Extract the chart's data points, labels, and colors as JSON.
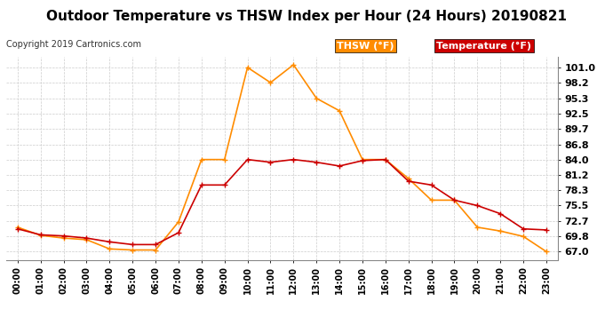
{
  "title": "Outdoor Temperature vs THSW Index per Hour (24 Hours) 20190821",
  "copyright": "Copyright 2019 Cartronics.com",
  "hours": [
    "00:00",
    "01:00",
    "02:00",
    "03:00",
    "04:00",
    "05:00",
    "06:00",
    "07:00",
    "08:00",
    "09:00",
    "10:00",
    "11:00",
    "12:00",
    "13:00",
    "14:00",
    "15:00",
    "16:00",
    "17:00",
    "18:00",
    "19:00",
    "20:00",
    "21:00",
    "22:00",
    "23:00"
  ],
  "temperature": [
    71.2,
    70.1,
    69.9,
    69.5,
    68.8,
    68.3,
    68.3,
    70.5,
    79.3,
    79.3,
    84.0,
    83.5,
    84.0,
    83.5,
    82.8,
    83.8,
    84.0,
    80.0,
    79.3,
    76.5,
    75.5,
    74.0,
    71.2,
    71.0
  ],
  "thsw": [
    71.5,
    70.0,
    69.5,
    69.2,
    67.5,
    67.3,
    67.3,
    72.5,
    84.0,
    84.0,
    101.0,
    98.2,
    101.5,
    95.3,
    93.0,
    84.0,
    84.0,
    80.5,
    76.5,
    76.5,
    71.5,
    70.8,
    69.8,
    67.0
  ],
  "temp_color": "#cc0000",
  "thsw_color": "#ff8c00",
  "background_color": "#ffffff",
  "grid_color": "#cccccc",
  "ylim_min": 65.5,
  "ylim_max": 103.0,
  "yticks": [
    67.0,
    69.8,
    72.7,
    75.5,
    78.3,
    81.2,
    84.0,
    86.8,
    89.7,
    92.5,
    95.3,
    98.2,
    101.0
  ],
  "title_fontsize": 11,
  "copyright_fontsize": 7,
  "legend_thsw_label": "THSW (°F)",
  "legend_temp_label": "Temperature (°F)",
  "thsw_legend_bg": "#ff8c00",
  "temp_legend_bg": "#cc0000"
}
